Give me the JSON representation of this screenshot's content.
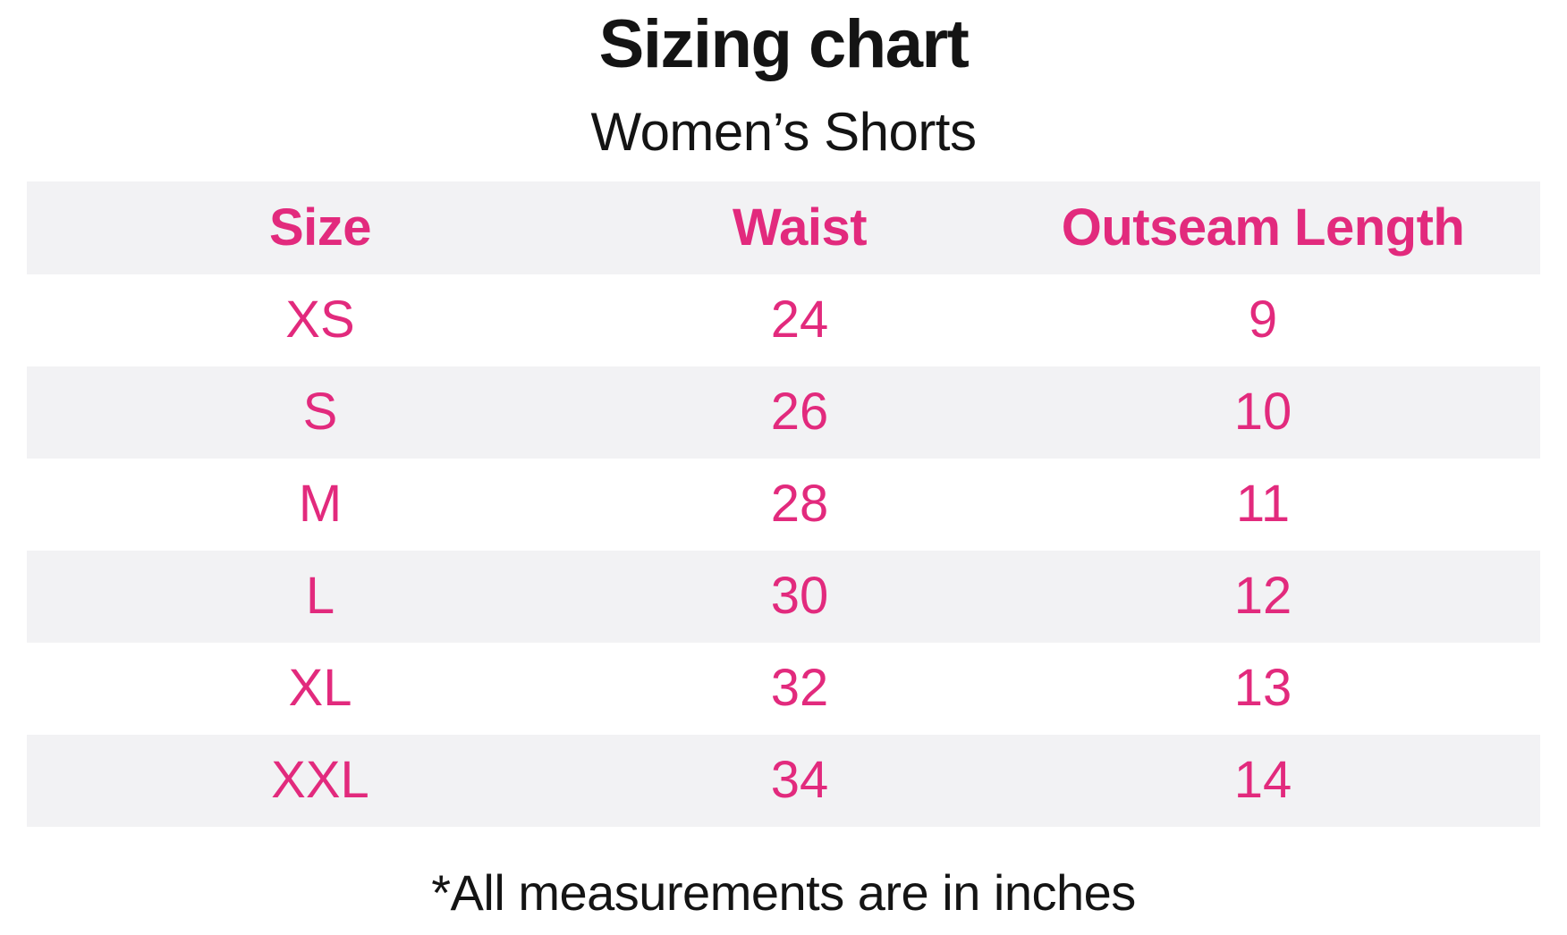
{
  "colors": {
    "accent_pink": "#e22a7d",
    "stripe_gray": "#f2f2f4",
    "text_black": "#141414",
    "background": "#ffffff"
  },
  "chart_data": {
    "type": "table",
    "title": "Sizing chart",
    "subtitle": "Women’s Shorts",
    "columns": [
      "Size",
      "Waist",
      "Outseam Length"
    ],
    "rows": [
      [
        "XS",
        "24",
        "9"
      ],
      [
        "S",
        "26",
        "10"
      ],
      [
        "M",
        "28",
        "11"
      ],
      [
        "L",
        "30",
        "12"
      ],
      [
        "XL",
        "32",
        "13"
      ],
      [
        "XXL",
        "34",
        "14"
      ]
    ],
    "units_note": "inches",
    "footnote": "*All measurements are in inches",
    "layout": {
      "striped_rows": "header, S, L, XXL are gray",
      "text_alignment": "center"
    }
  }
}
